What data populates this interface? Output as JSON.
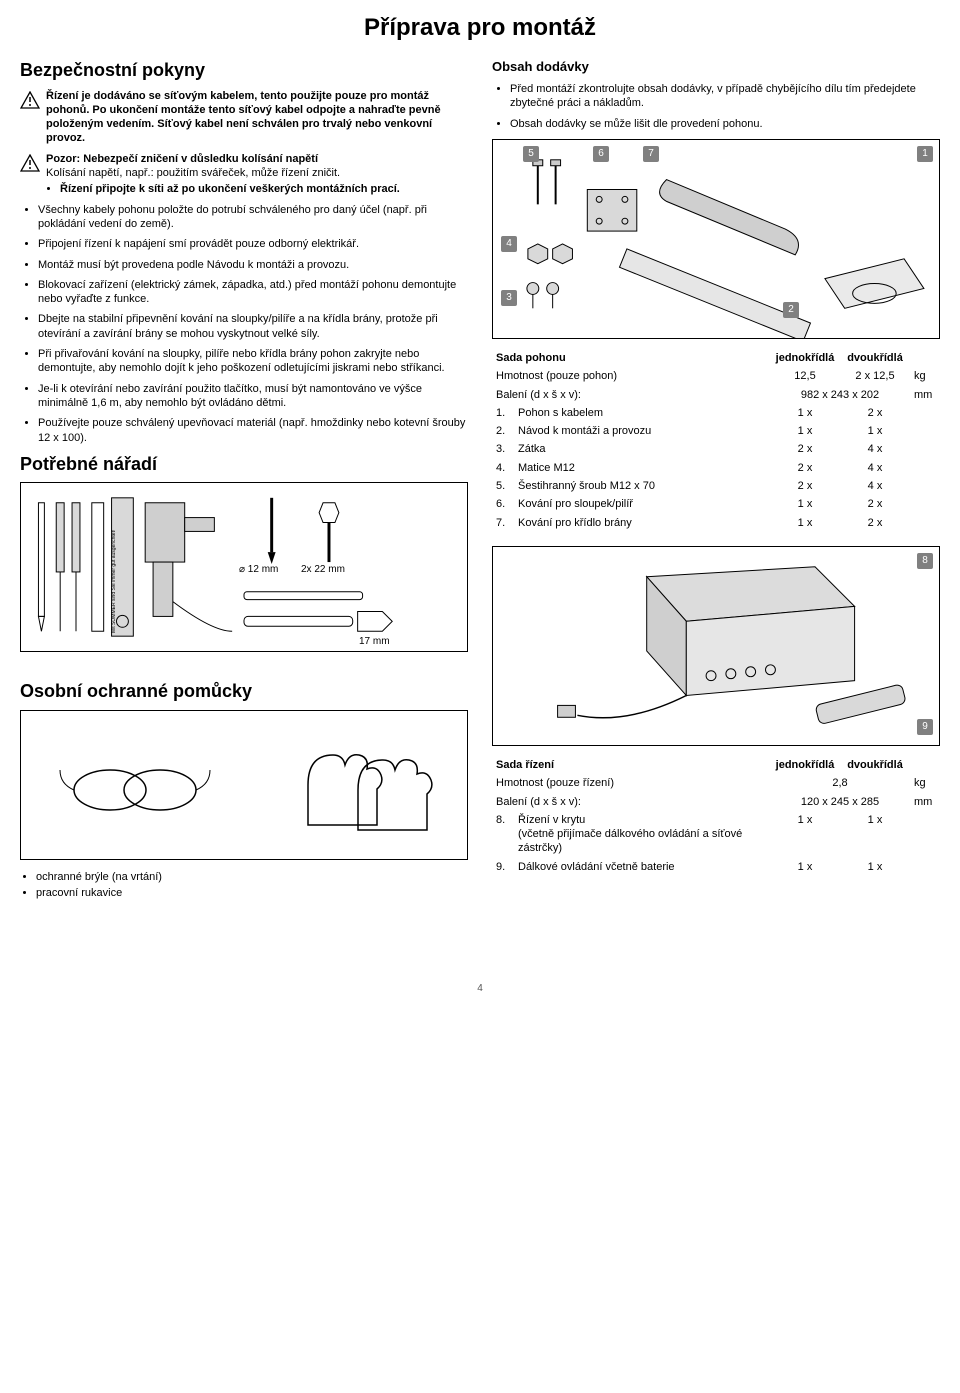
{
  "title": "Příprava pro montáž",
  "left": {
    "safety_heading": "Bezpečnostní pokyny",
    "warn1": "Řízení je dodáváno se síťovým kabelem, tento použijte pouze pro montáž pohonů. Po ukončení montáže tento síťový kabel odpojte a nahraďte pevně položeným vedením. Síťový kabel není schválen pro trvalý nebo venkovní provoz.",
    "warn2_title": "Pozor: Nebezpečí zničení v důsledku kolísání napětí",
    "warn2_body": "Kolísání napětí, např.: použitím svářeček, může řízení zničit.",
    "warn2_bullet": "Řízení připojte k síti až po ukončení veškerých montážních prací.",
    "bullets": [
      "Všechny kabely pohonu položte do potrubí schváleného pro daný účel (např. při pokládání vedení do země).",
      "Připojení řízení k napájení smí provádět pouze odborný elektrikář.",
      "Montáž musí být provedena podle Návodu k montáži a provozu.",
      "Blokovací zařízení (elektrický zámek, západka, atd.) před montáží pohonu demontujte nebo vyřaďte z funkce.",
      "Dbejte na stabilní připevnění kování na sloupky/pilíře a na křídla brány, protože při otevírání a zavírání brány se mohou vyskytnout velké síly.",
      "Při přivařování kování na sloupky, pilíře nebo křídla brány pohon zakryjte nebo demontujte, aby nemohlo dojít k jeho poškození odletujícími jiskrami nebo stříkanci.",
      "Je-li k otevírání nebo zavírání použito tlačítko, musí být namontováno ve výšce minimálně 1,6 m, aby nemohlo být ovládáno dětmi.",
      "Používejte pouze schválený upevňovací materiál (např. hmoždinky nebo kotevní šrouby 12 x 100)."
    ],
    "tools_heading": "Potřebné nářadí",
    "tools_labels": {
      "diam": "⌀ 12 mm",
      "wrench": "2x 22 mm",
      "socket": "17 mm",
      "tape_text": "Mit SOMMER sind Sie immer gut ausgerichtet!"
    },
    "ppe_heading": "Osobní ochranné pomůcky",
    "ppe_items": [
      "ochranné brýle (na vrtání)",
      "pracovní rukavice"
    ]
  },
  "right": {
    "scope_heading": "Obsah dodávky",
    "scope_bullets": [
      "Před montáží zkontrolujte obsah dodávky, v případě chybějícího dílu tím předejdete zbytečné práci a nákladům.",
      "Obsah dodávky se může lišit dle provedení pohonu."
    ],
    "kit1": {
      "heading": "Sada pohonu",
      "col1": "jednokřídlá",
      "col2": "dvoukřídlá",
      "badges": [
        "1",
        "2",
        "3",
        "4",
        "5",
        "6",
        "7"
      ],
      "rows_head": [
        {
          "label": "Hmotnost (pouze pohon)",
          "c1": "12,5",
          "c2": "2 x 12,5",
          "unit": "kg"
        },
        {
          "label": "Balení (d x š x v):",
          "c1": "982 x 243 x 202",
          "c2": "",
          "unit": "mm"
        }
      ],
      "rows": [
        {
          "n": "1.",
          "label": "Pohon s kabelem",
          "c1": "1 x",
          "c2": "2 x"
        },
        {
          "n": "2.",
          "label": "Návod k montáži a provozu",
          "c1": "1 x",
          "c2": "1 x"
        },
        {
          "n": "3.",
          "label": "Zátka",
          "c1": "2 x",
          "c2": "4 x"
        },
        {
          "n": "4.",
          "label": "Matice M12",
          "c1": "2 x",
          "c2": "4 x"
        },
        {
          "n": "5.",
          "label": "Šestihranný šroub M12 x 70",
          "c1": "2 x",
          "c2": "4 x"
        },
        {
          "n": "6.",
          "label": "Kování pro sloupek/pilíř",
          "c1": "1 x",
          "c2": "2 x"
        },
        {
          "n": "7.",
          "label": "Kování pro křídlo brány",
          "c1": "1 x",
          "c2": "2 x"
        }
      ]
    },
    "kit2": {
      "heading": "Sada řízení",
      "col1": "jednokřídlá",
      "col2": "dvoukřídlá",
      "badges": [
        "8",
        "9"
      ],
      "rows_head": [
        {
          "label": "Hmotnost (pouze řízení)",
          "c1": "2,8",
          "c2": "",
          "unit": "kg"
        },
        {
          "label": "Balení (d x š x v):",
          "c1": "120 x 245 x 285",
          "c2": "",
          "unit": "mm"
        }
      ],
      "rows": [
        {
          "n": "8.",
          "label": "Řízení v krytu\n(včetně přijímače dálkového ovládání a síťové zástrčky)",
          "c1": "1 x",
          "c2": "1 x"
        },
        {
          "n": "9.",
          "label": "Dálkové ovládání včetně baterie",
          "c1": "1 x",
          "c2": "1 x"
        }
      ]
    }
  },
  "footer": "4"
}
